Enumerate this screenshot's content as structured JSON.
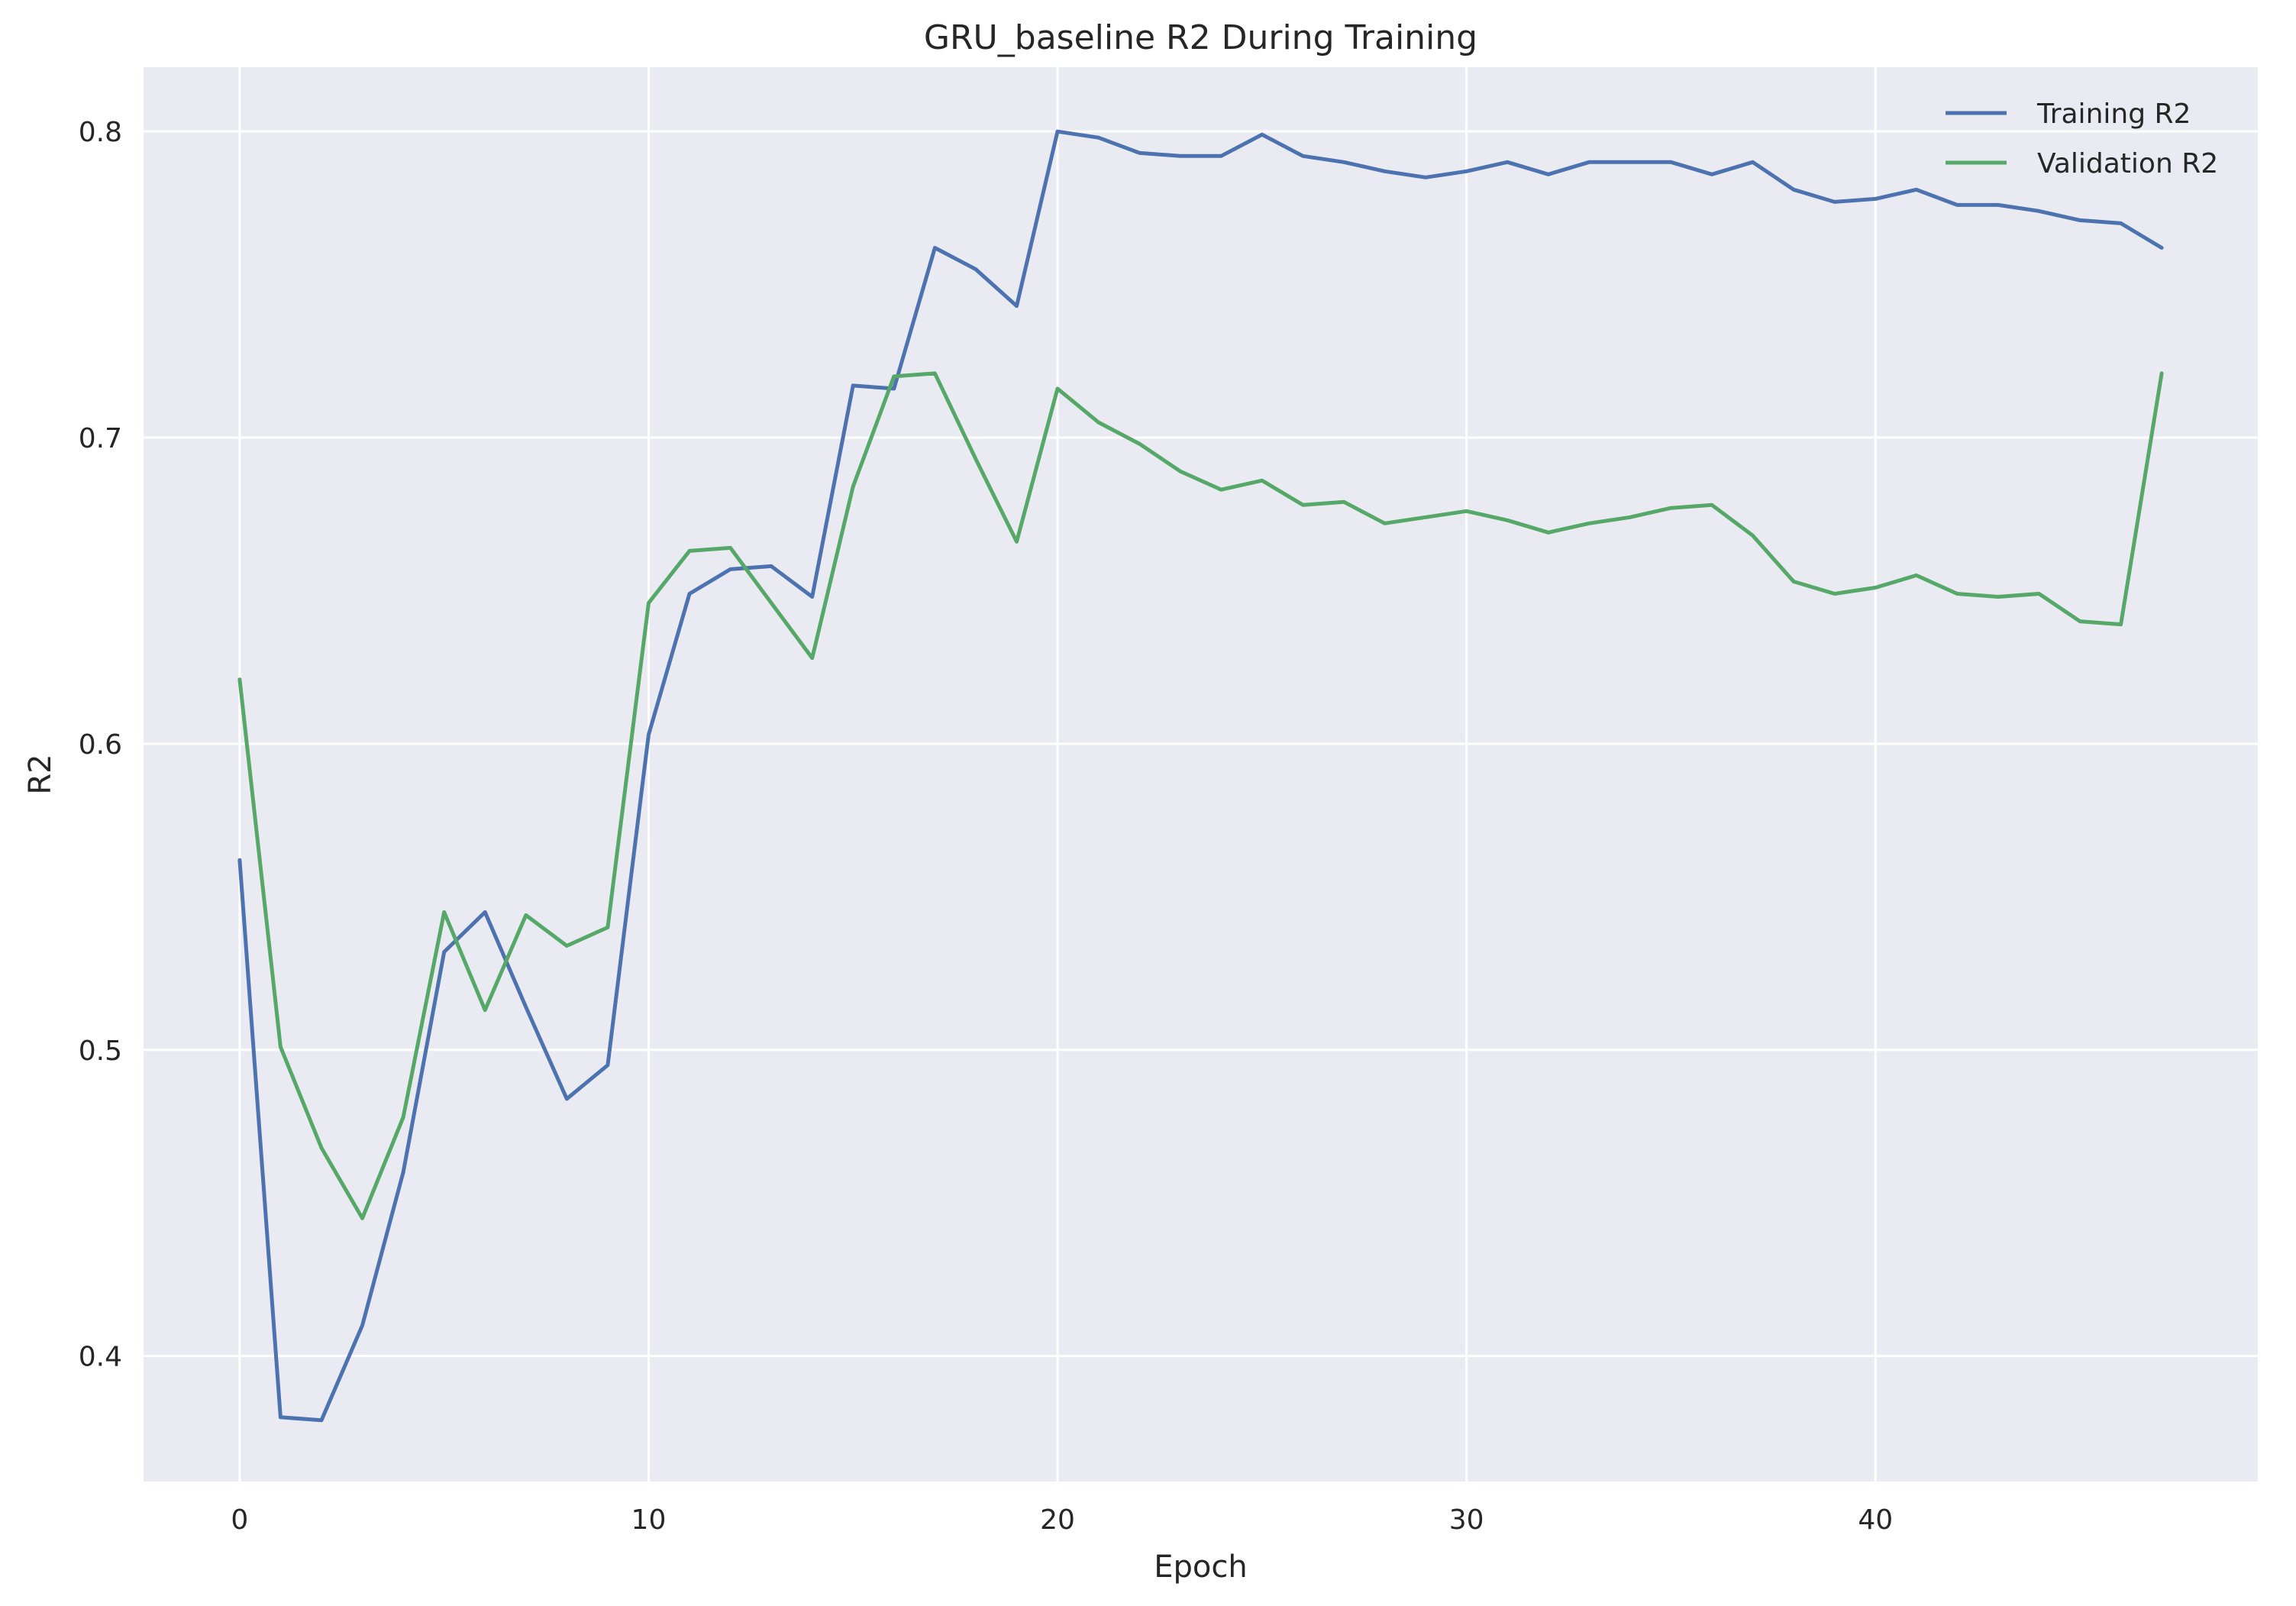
{
  "chart_data": {
    "type": "line",
    "title": "GRU_baseline R2 During Training",
    "xlabel": "Epoch",
    "ylabel": "R2",
    "xlim": [
      -2.35,
      49.35
    ],
    "ylim": [
      0.359,
      0.821
    ],
    "xticks": [
      0,
      10,
      20,
      30,
      40
    ],
    "yticks": [
      0.4,
      0.5,
      0.6,
      0.7,
      0.8
    ],
    "xtick_labels": [
      "0",
      "10",
      "20",
      "30",
      "40"
    ],
    "ytick_labels": [
      "0.4",
      "0.5",
      "0.6",
      "0.7",
      "0.8"
    ],
    "grid": true,
    "legend_position": "top-right",
    "x": [
      0,
      1,
      2,
      3,
      4,
      5,
      6,
      7,
      8,
      9,
      10,
      11,
      12,
      13,
      14,
      15,
      16,
      17,
      18,
      19,
      20,
      21,
      22,
      23,
      24,
      25,
      26,
      27,
      28,
      29,
      30,
      31,
      32,
      33,
      34,
      35,
      36,
      37,
      38,
      39,
      40,
      41,
      42,
      43,
      44,
      45,
      46,
      47
    ],
    "series": [
      {
        "name": "Training R2",
        "color": "#4c72b0",
        "values": [
          0.562,
          0.38,
          0.379,
          0.41,
          0.46,
          0.532,
          0.545,
          0.514,
          0.484,
          0.495,
          0.603,
          0.649,
          0.657,
          0.658,
          0.648,
          0.717,
          0.716,
          0.762,
          0.755,
          0.743,
          0.8,
          0.798,
          0.793,
          0.792,
          0.792,
          0.799,
          0.792,
          0.79,
          0.787,
          0.785,
          0.787,
          0.79,
          0.786,
          0.79,
          0.79,
          0.79,
          0.786,
          0.79,
          0.781,
          0.777,
          0.778,
          0.781,
          0.776,
          0.776,
          0.774,
          0.771,
          0.77,
          0.762
        ]
      },
      {
        "name": "Validation R2",
        "color": "#55a868",
        "values": [
          0.621,
          0.501,
          0.468,
          0.445,
          0.478,
          0.545,
          0.513,
          0.544,
          0.534,
          0.54,
          0.646,
          0.663,
          0.664,
          0.646,
          0.628,
          0.684,
          0.72,
          0.721,
          0.693,
          0.666,
          0.716,
          0.705,
          0.698,
          0.689,
          0.683,
          0.686,
          0.678,
          0.679,
          0.672,
          0.674,
          0.676,
          0.673,
          0.669,
          0.672,
          0.674,
          0.677,
          0.678,
          0.668,
          0.653,
          0.649,
          0.651,
          0.655,
          0.649,
          0.648,
          0.649,
          0.64,
          0.639,
          0.721
        ]
      }
    ]
  }
}
